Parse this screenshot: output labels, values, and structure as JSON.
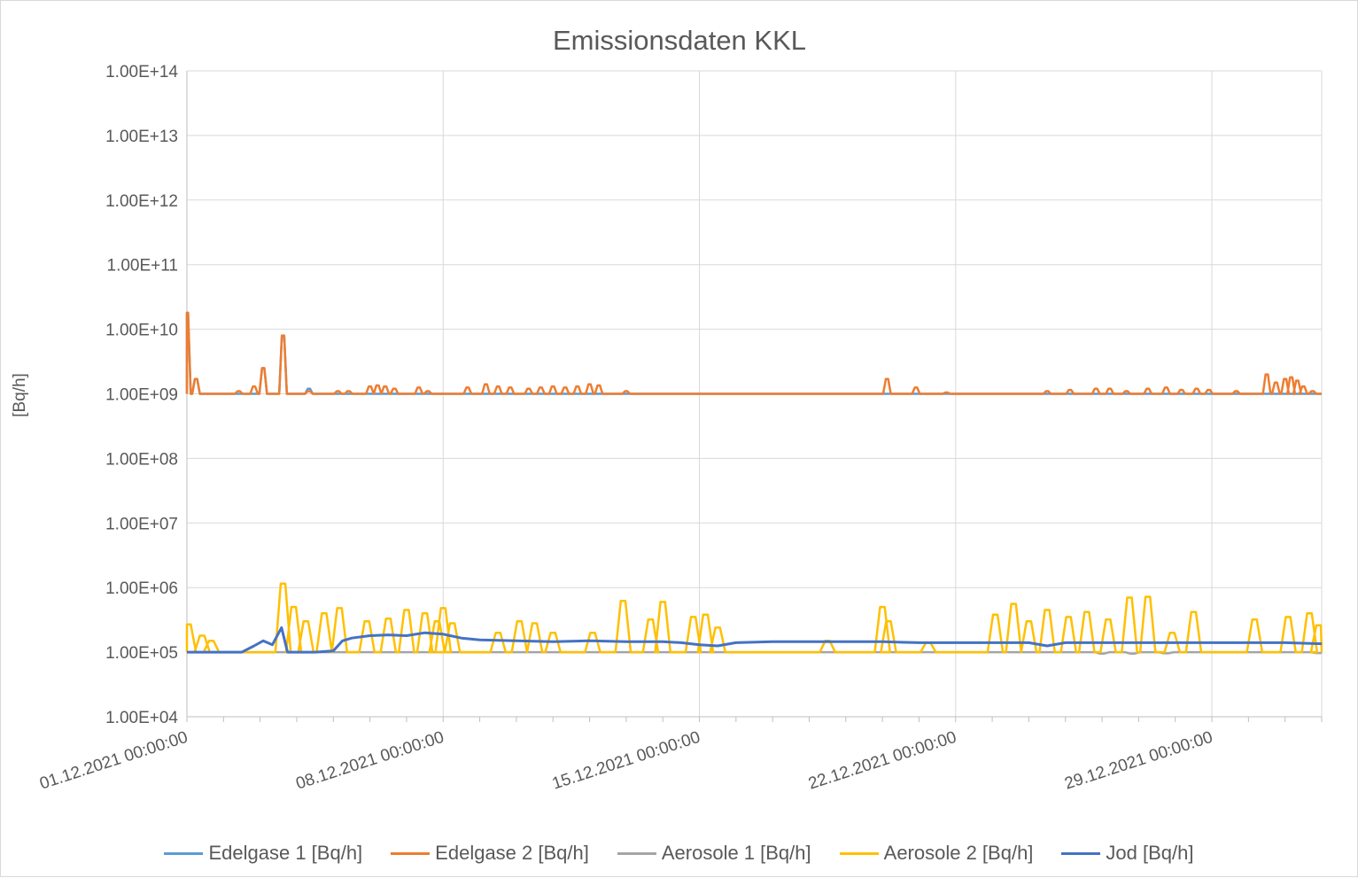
{
  "chart_data": {
    "type": "line",
    "title": "Emissionsdaten KKL",
    "ylabel": "[Bq/h]",
    "xlabel": "",
    "yscale": "log",
    "ylim": [
      10000,
      100000000000000
    ],
    "y_ticks": [
      "1.00E+04",
      "1.00E+05",
      "1.00E+06",
      "1.00E+07",
      "1.00E+08",
      "1.00E+09",
      "1.00E+10",
      "1.00E+11",
      "1.00E+12",
      "1.00E+13",
      "1.00E+14"
    ],
    "xlim": [
      "01.12.2021 00:00:00",
      "01.01.2022 00:00:00"
    ],
    "x_ticks": [
      "01.12.2021 00:00:00",
      "08.12.2021 00:00:00",
      "15.12.2021 00:00:00",
      "22.12.2021 00:00:00",
      "29.12.2021 00:00:00"
    ],
    "grid": true,
    "legend_position": "bottom",
    "series": [
      {
        "name": "Edelgase 1 [Bq/h]",
        "color": "#5B9BD5",
        "baseline": 1000000000,
        "spikes": [
          [
            "01.12.2021 00:00",
            18000000000
          ],
          [
            "01.12.2021 06:00",
            1700000000
          ],
          [
            "03.12.2021 02:00",
            2500000000
          ],
          [
            "03.12.2021 15:00",
            8000000000
          ],
          [
            "04.12.2021 08:00",
            1200000000
          ]
        ]
      },
      {
        "name": "Edelgase 2 [Bq/h]",
        "color": "#ED7D31",
        "baseline": 1000000000,
        "spikes": [
          [
            "01.12.2021 00:00",
            18000000000
          ],
          [
            "01.12.2021 06:00",
            1700000000
          ],
          [
            "02.12.2021 10:00",
            1100000000
          ],
          [
            "02.12.2021 20:00",
            1300000000
          ],
          [
            "03.12.2021 02:00",
            2500000000
          ],
          [
            "03.12.2021 15:00",
            8000000000
          ],
          [
            "04.12.2021 08:00",
            1100000000
          ],
          [
            "05.12.2021 03:00",
            1100000000
          ],
          [
            "05.12.2021 10:00",
            1100000000
          ],
          [
            "06.12.2021 00:00",
            1300000000
          ],
          [
            "06.12.2021 05:00",
            1350000000
          ],
          [
            "06.12.2021 10:00",
            1300000000
          ],
          [
            "06.12.2021 16:00",
            1200000000
          ],
          [
            "07.12.2021 08:00",
            1250000000
          ],
          [
            "07.12.2021 14:00",
            1100000000
          ],
          [
            "08.12.2021 16:00",
            1250000000
          ],
          [
            "09.12.2021 04:00",
            1400000000
          ],
          [
            "09.12.2021 12:00",
            1300000000
          ],
          [
            "09.12.2021 20:00",
            1250000000
          ],
          [
            "10.12.2021 08:00",
            1200000000
          ],
          [
            "10.12.2021 16:00",
            1250000000
          ],
          [
            "11.12.2021 00:00",
            1300000000
          ],
          [
            "11.12.2021 08:00",
            1250000000
          ],
          [
            "11.12.2021 16:00",
            1300000000
          ],
          [
            "12.12.2021 00:00",
            1400000000
          ],
          [
            "12.12.2021 06:00",
            1350000000
          ],
          [
            "13.12.2021 00:00",
            1100000000
          ],
          [
            "20.12.2021 03:00",
            1700000000
          ],
          [
            "20.12.2021 22:00",
            1250000000
          ],
          [
            "21.12.2021 18:00",
            1050000000
          ],
          [
            "24.12.2021 12:00",
            1100000000
          ],
          [
            "25.12.2021 03:00",
            1150000000
          ],
          [
            "25.12.2021 20:00",
            1200000000
          ],
          [
            "26.12.2021 05:00",
            1200000000
          ],
          [
            "26.12.2021 16:00",
            1100000000
          ],
          [
            "27.12.2021 06:00",
            1200000000
          ],
          [
            "27.12.2021 18:00",
            1250000000
          ],
          [
            "28.12.2021 04:00",
            1150000000
          ],
          [
            "28.12.2021 14:00",
            1200000000
          ],
          [
            "28.12.2021 22:00",
            1150000000
          ],
          [
            "29.12.2021 16:00",
            1100000000
          ],
          [
            "30.12.2021 12:00",
            2000000000
          ],
          [
            "30.12.2021 18:00",
            1500000000
          ],
          [
            "31.12.2021 00:00",
            1700000000
          ],
          [
            "31.12.2021 04:00",
            1800000000
          ],
          [
            "31.12.2021 08:00",
            1600000000
          ],
          [
            "31.12.2021 12:00",
            1300000000
          ],
          [
            "31.12.2021 18:00",
            1100000000
          ]
        ]
      },
      {
        "name": "Aerosole 1 [Bq/h]",
        "color": "#A5A5A5",
        "baseline": 100000,
        "dips": [
          [
            "26.12.2021 00:00",
            95000
          ],
          [
            "26.12.2021 20:00",
            95000
          ],
          [
            "27.12.2021 18:00",
            96000
          ],
          [
            "31.12.2021 22:00",
            97000
          ]
        ]
      },
      {
        "name": "Aerosole 2 [Bq/h]",
        "color": "#FFC000",
        "baseline": 100000,
        "spikes": [
          [
            "01.12.2021 01:00",
            270000
          ],
          [
            "01.12.2021 10:00",
            180000
          ],
          [
            "01.12.2021 16:00",
            150000
          ],
          [
            "03.12.2021 15:00",
            1150000
          ],
          [
            "03.12.2021 22:00",
            500000
          ],
          [
            "04.12.2021 06:00",
            300000
          ],
          [
            "04.12.2021 18:00",
            400000
          ],
          [
            "05.12.2021 04:00",
            480000
          ],
          [
            "05.12.2021 22:00",
            300000
          ],
          [
            "06.12.2021 12:00",
            330000
          ],
          [
            "07.12.2021 00:00",
            450000
          ],
          [
            "07.12.2021 12:00",
            400000
          ],
          [
            "07.12.2021 20:00",
            300000
          ],
          [
            "08.12.2021 00:00",
            480000
          ],
          [
            "08.12.2021 06:00",
            280000
          ],
          [
            "09.12.2021 12:00",
            200000
          ],
          [
            "10.12.2021 02:00",
            300000
          ],
          [
            "10.12.2021 12:00",
            280000
          ],
          [
            "11.12.2021 00:00",
            200000
          ],
          [
            "12.12.2021 02:00",
            200000
          ],
          [
            "12.12.2021 22:00",
            620000
          ],
          [
            "13.12.2021 16:00",
            320000
          ],
          [
            "14.12.2021 00:00",
            600000
          ],
          [
            "14.12.2021 20:00",
            350000
          ],
          [
            "15.12.2021 04:00",
            380000
          ],
          [
            "15.12.2021 12:00",
            240000
          ],
          [
            "18.12.2021 12:00",
            150000
          ],
          [
            "20.12.2021 00:00",
            500000
          ],
          [
            "20.12.2021 04:00",
            300000
          ],
          [
            "21.12.2021 06:00",
            140000
          ],
          [
            "23.12.2021 02:00",
            380000
          ],
          [
            "23.12.2021 14:00",
            560000
          ],
          [
            "24.12.2021 00:00",
            300000
          ],
          [
            "24.12.2021 12:00",
            450000
          ],
          [
            "25.12.2021 02:00",
            350000
          ],
          [
            "25.12.2021 14:00",
            420000
          ],
          [
            "26.12.2021 04:00",
            320000
          ],
          [
            "26.12.2021 18:00",
            700000
          ],
          [
            "27.12.2021 06:00",
            720000
          ],
          [
            "27.12.2021 22:00",
            200000
          ],
          [
            "28.12.2021 12:00",
            420000
          ],
          [
            "30.12.2021 04:00",
            320000
          ],
          [
            "31.12.2021 02:00",
            350000
          ],
          [
            "31.12.2021 16:00",
            400000
          ],
          [
            "31.12.2021 22:00",
            260000
          ]
        ]
      },
      {
        "name": "Jod [Bq/h]",
        "color": "#4472C4",
        "points": [
          [
            "01.12.2021 00:00",
            100000
          ],
          [
            "02.12.2021 12:00",
            100000
          ],
          [
            "02.12.2021 20:00",
            125000
          ],
          [
            "03.12.2021 02:00",
            150000
          ],
          [
            "03.12.2021 08:00",
            130000
          ],
          [
            "03.12.2021 14:00",
            240000
          ],
          [
            "03.12.2021 18:00",
            100000
          ],
          [
            "04.12.2021 12:00",
            100000
          ],
          [
            "05.12.2021 00:00",
            105000
          ],
          [
            "05.12.2021 06:00",
            150000
          ],
          [
            "05.12.2021 12:00",
            165000
          ],
          [
            "06.12.2021 00:00",
            180000
          ],
          [
            "06.12.2021 12:00",
            185000
          ],
          [
            "07.12.2021 00:00",
            180000
          ],
          [
            "07.12.2021 12:00",
            200000
          ],
          [
            "08.12.2021 00:00",
            190000
          ],
          [
            "08.12.2021 12:00",
            165000
          ],
          [
            "09.12.2021 00:00",
            155000
          ],
          [
            "10.12.2021 00:00",
            150000
          ],
          [
            "11.12.2021 00:00",
            145000
          ],
          [
            "12.12.2021 00:00",
            150000
          ],
          [
            "13.12.2021 00:00",
            145000
          ],
          [
            "14.12.2021 00:00",
            145000
          ],
          [
            "14.12.2021 12:00",
            140000
          ],
          [
            "15.12.2021 00:00",
            130000
          ],
          [
            "15.12.2021 12:00",
            125000
          ],
          [
            "16.12.2021 00:00",
            140000
          ],
          [
            "17.12.2021 00:00",
            145000
          ],
          [
            "18.12.2021 00:00",
            145000
          ],
          [
            "19.12.2021 00:00",
            145000
          ],
          [
            "20.12.2021 00:00",
            145000
          ],
          [
            "21.12.2021 00:00",
            140000
          ],
          [
            "22.12.2021 00:00",
            140000
          ],
          [
            "23.12.2021 00:00",
            140000
          ],
          [
            "24.12.2021 00:00",
            140000
          ],
          [
            "24.12.2021 12:00",
            125000
          ],
          [
            "25.12.2021 00:00",
            140000
          ],
          [
            "26.12.2021 00:00",
            140000
          ],
          [
            "27.12.2021 00:00",
            140000
          ],
          [
            "28.12.2021 00:00",
            140000
          ],
          [
            "29.12.2021 00:00",
            140000
          ],
          [
            "30.12.2021 00:00",
            140000
          ],
          [
            "31.12.2021 00:00",
            140000
          ],
          [
            "01.01.2022 00:00",
            135000
          ]
        ]
      }
    ]
  }
}
